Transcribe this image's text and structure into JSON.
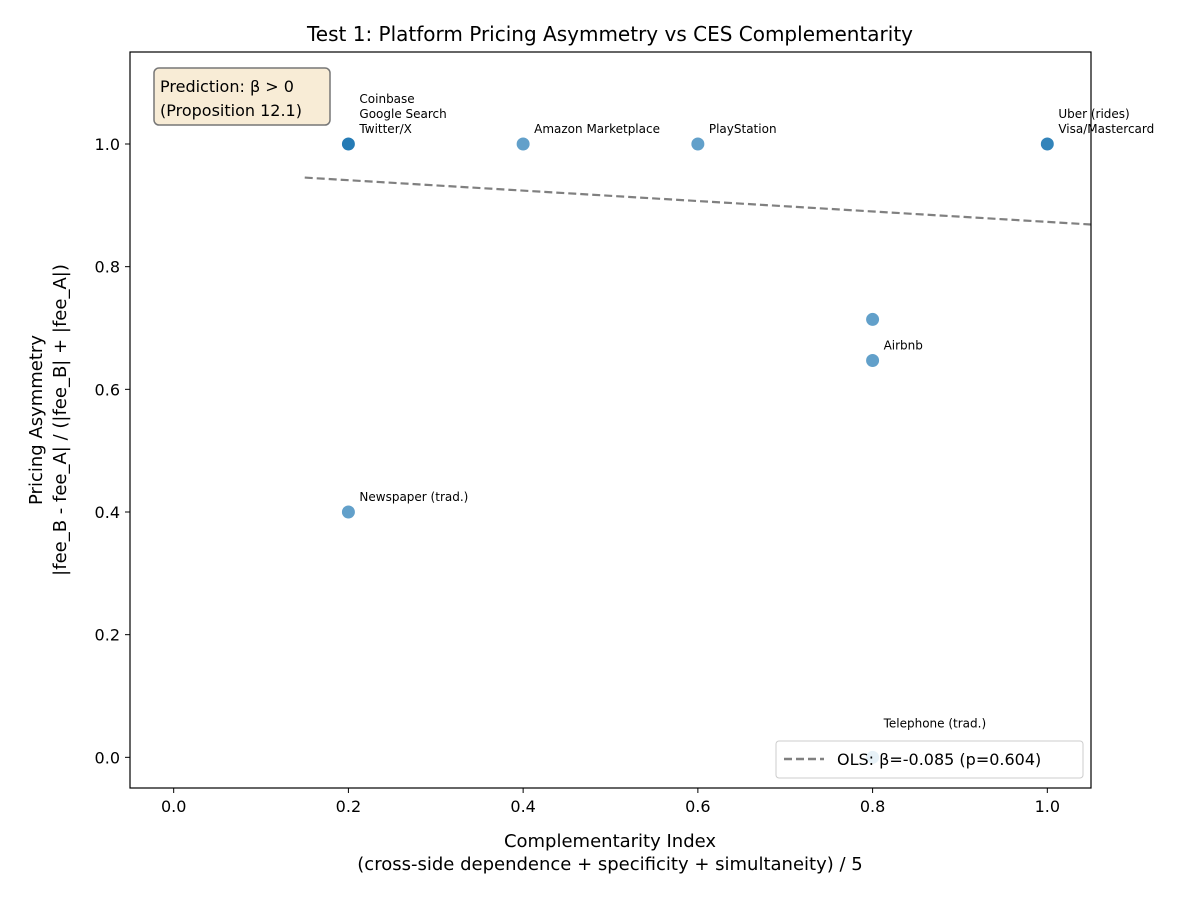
{
  "chart_data": {
    "type": "scatter",
    "title": "Test 1: Platform Pricing Asymmetry vs CES Complementarity",
    "xlabel": "Complementarity Index",
    "xlabel2": "(cross-side dependence + specificity + simultaneity) / 5",
    "ylabel": "Pricing Asymmetry",
    "ylabel2": "|fee_B - fee_A| / (|fee_B| + |fee_A|)",
    "xlim": [
      -0.05,
      1.05
    ],
    "ylim": [
      -0.05,
      1.15
    ],
    "xticks": [
      "0.0",
      "0.2",
      "0.4",
      "0.6",
      "0.8",
      "1.0"
    ],
    "yticks": [
      "0.0",
      "0.2",
      "0.4",
      "0.6",
      "0.8",
      "1.0"
    ],
    "grid": false,
    "point_color": "#1f77b4",
    "points": [
      {
        "x": 0.2,
        "y": 1.0,
        "label": "Twitter/X"
      },
      {
        "x": 0.2,
        "y": 1.0,
        "label": "Google Search"
      },
      {
        "x": 0.2,
        "y": 1.0,
        "label": "Coinbase"
      },
      {
        "x": 0.4,
        "y": 1.0,
        "label": "Amazon Marketplace"
      },
      {
        "x": 0.6,
        "y": 1.0,
        "label": "PlayStation"
      },
      {
        "x": 1.0,
        "y": 1.0,
        "label": "Visa/Mastercard"
      },
      {
        "x": 1.0,
        "y": 1.0,
        "label": "Uber (rides)"
      },
      {
        "x": 0.8,
        "y": 0.714,
        "label": ""
      },
      {
        "x": 0.8,
        "y": 0.647,
        "label": "Airbnb"
      },
      {
        "x": 0.2,
        "y": 0.4,
        "label": "Newspaper (trad.)"
      },
      {
        "x": 0.8,
        "y": 0.0,
        "label": "Telephone (trad.)"
      }
    ],
    "fit": {
      "slope": -0.085,
      "intercept": 0.958,
      "x_range": [
        0.15,
        1.05
      ],
      "color": "#808080",
      "style": "dashed"
    },
    "legend": {
      "label": "OLS: β=-0.085 (p=0.604)",
      "placement": "lower right"
    },
    "annotation": {
      "line1": "Prediction: β > 0",
      "line2": "(Proposition 12.1)",
      "background": "#f8ecd6"
    }
  }
}
